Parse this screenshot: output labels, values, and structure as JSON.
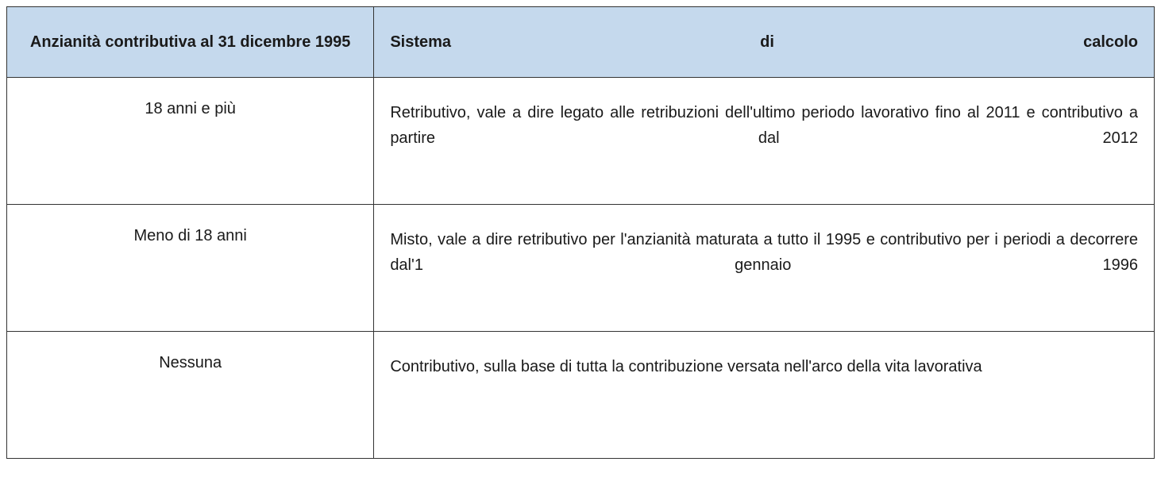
{
  "table": {
    "header_bg_color": "#c5d9ed",
    "border_color": "#333333",
    "text_color": "#1a1a1a",
    "font_size": 20,
    "columns": [
      "Anzianità contributiva al 31 dicembre 1995",
      "Sistema di calcolo"
    ],
    "rows": [
      {
        "seniority": "18 anni e più",
        "system": "Retributivo, vale a dire legato alle retribuzioni dell'ultimo periodo lavorativo fino al 2011 e contributivo a partire dal 2012"
      },
      {
        "seniority": "Meno di 18 anni",
        "system": "Misto, vale a dire retributivo per l'anzianità maturata a tutto il 1995 e contributivo per i periodi a decorrere dal'1 gennaio 1996"
      },
      {
        "seniority": "Nessuna",
        "system": "Contributivo, sulla base di tutta la contribuzione versata nell'arco della vita lavorativa"
      }
    ]
  }
}
